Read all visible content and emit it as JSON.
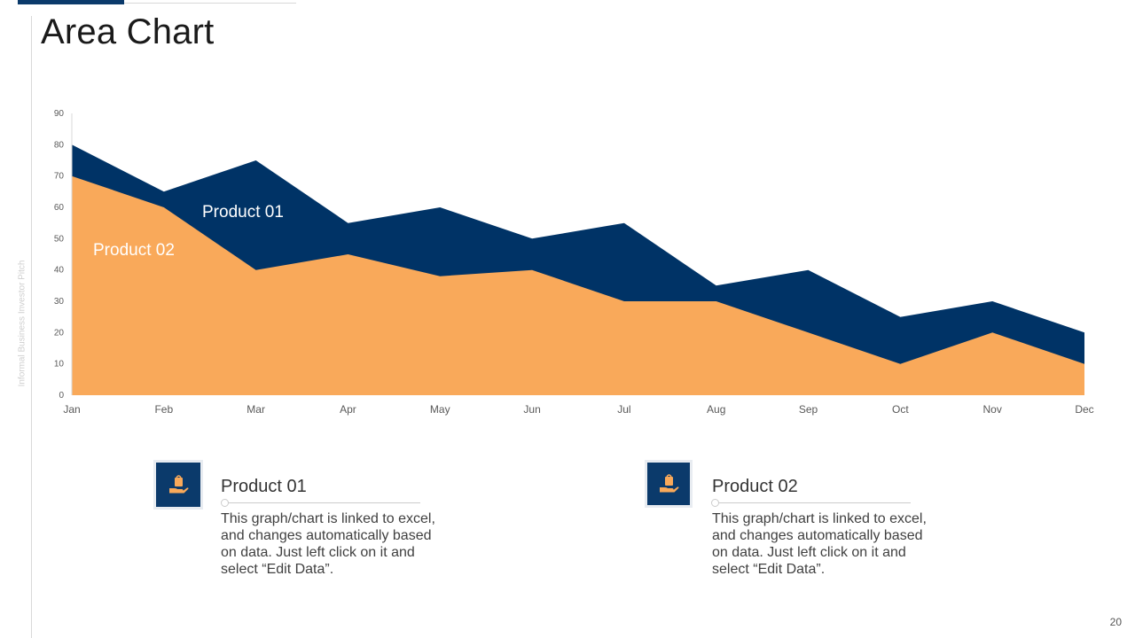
{
  "page": {
    "title": "Area Chart",
    "side_text": "Informal Business Investor Pitch",
    "page_number": "20"
  },
  "colors": {
    "accent": "#0b3a6b",
    "series_total": "#003366",
    "series_product02": "#f9a95a"
  },
  "chart_data": {
    "type": "area",
    "title": "",
    "xlabel": "",
    "ylabel": "",
    "ylim": [
      0,
      90
    ],
    "yticks": [
      0,
      10,
      20,
      30,
      40,
      50,
      60,
      70,
      80,
      90
    ],
    "categories": [
      "Jan",
      "Feb",
      "Mar",
      "Apr",
      "May",
      "Jun",
      "Jul",
      "Aug",
      "Sep",
      "Oct",
      "Nov",
      "Dec"
    ],
    "series": [
      {
        "name": "Product 01",
        "color": "#003366",
        "values": [
          80,
          65,
          75,
          55,
          60,
          50,
          55,
          35,
          40,
          25,
          30,
          20
        ]
      },
      {
        "name": "Product 02",
        "color": "#f9a95a",
        "values": [
          70,
          60,
          40,
          45,
          38,
          40,
          30,
          30,
          20,
          10,
          20,
          10
        ]
      }
    ],
    "labels": {
      "product01": "Product 01",
      "product02": "Product 02"
    }
  },
  "cards": [
    {
      "title": "Product 01",
      "icon": "hand-holding-bag-icon",
      "text": "This graph/chart is linked to excel, and changes automatically based on data. Just left click on it and select “Edit Data”."
    },
    {
      "title": "Product 02",
      "icon": "hand-holding-bag-icon",
      "text": "This graph/chart is linked to excel, and changes automatically based on data. Just left click on it and select “Edit Data”."
    }
  ]
}
